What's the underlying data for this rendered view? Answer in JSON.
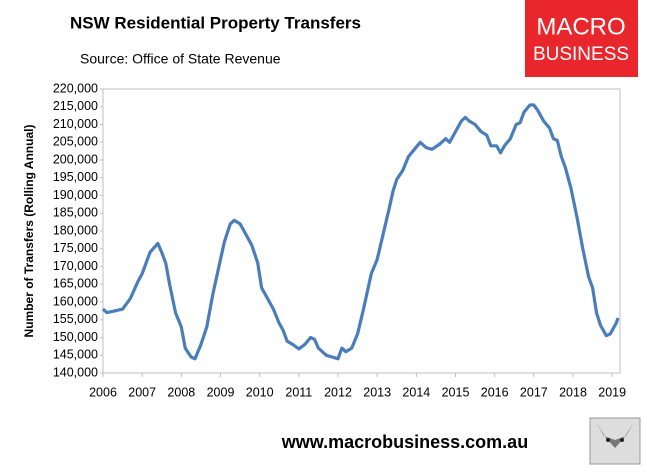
{
  "chart_data": {
    "type": "line",
    "title": "NSW Residential Property Transfers",
    "subtitle": "Source: Office of State Revenue",
    "y_label": "Number of Transfers (Rolling Annual)",
    "xlim": [
      2006,
      2019.2
    ],
    "xticks": [
      2006,
      2007,
      2008,
      2009,
      2010,
      2011,
      2012,
      2013,
      2014,
      2015,
      2016,
      2017,
      2018,
      2019
    ],
    "ylim": [
      140000,
      220000
    ],
    "yticks": [
      {
        "value": 140000,
        "label": "140,000"
      },
      {
        "value": 145000,
        "label": "145,000"
      },
      {
        "value": 150000,
        "label": "150,000"
      },
      {
        "value": 155000,
        "label": "155,000"
      },
      {
        "value": 160000,
        "label": "160,000"
      },
      {
        "value": 165000,
        "label": "165,000"
      },
      {
        "value": 170000,
        "label": "170,000"
      },
      {
        "value": 175000,
        "label": "175,000"
      },
      {
        "value": 180000,
        "label": "180,000"
      },
      {
        "value": 185000,
        "label": "185,000"
      },
      {
        "value": 190000,
        "label": "190,000"
      },
      {
        "value": 195000,
        "label": "195,000"
      },
      {
        "value": 200000,
        "label": "200,000"
      },
      {
        "value": 205000,
        "label": "205,000"
      },
      {
        "value": 210000,
        "label": "210,000"
      },
      {
        "value": 215000,
        "label": "215,000"
      },
      {
        "value": 220000,
        "label": "220,000"
      }
    ],
    "grid": false,
    "x": [
      2006.0,
      2006.1,
      2006.3,
      2006.5,
      2006.7,
      2006.9,
      2007.0,
      2007.2,
      2007.4,
      2007.5,
      2007.6,
      2007.7,
      2007.85,
      2008.0,
      2008.1,
      2008.25,
      2008.35,
      2008.5,
      2008.65,
      2008.8,
      2009.0,
      2009.1,
      2009.25,
      2009.35,
      2009.5,
      2009.65,
      2009.8,
      2009.95,
      2010.05,
      2010.2,
      2010.35,
      2010.5,
      2010.6,
      2010.7,
      2010.85,
      2011.0,
      2011.15,
      2011.3,
      2011.4,
      2011.5,
      2011.7,
      2011.85,
      2012.0,
      2012.1,
      2012.2,
      2012.35,
      2012.5,
      2012.65,
      2012.75,
      2012.85,
      2013.0,
      2013.15,
      2013.3,
      2013.4,
      2013.5,
      2013.65,
      2013.8,
      2013.95,
      2014.1,
      2014.25,
      2014.4,
      2014.6,
      2014.75,
      2014.85,
      2015.0,
      2015.15,
      2015.25,
      2015.35,
      2015.5,
      2015.65,
      2015.8,
      2015.9,
      2016.05,
      2016.15,
      2016.25,
      2016.4,
      2016.55,
      2016.65,
      2016.75,
      2016.9,
      2017.0,
      2017.1,
      2017.25,
      2017.4,
      2017.5,
      2017.6,
      2017.7,
      2017.8,
      2017.95,
      2018.1,
      2018.25,
      2018.4,
      2018.5,
      2018.6,
      2018.7,
      2018.85,
      2018.95,
      2019.1,
      2019.15
    ],
    "series": [
      {
        "name": "NSW Residential Property Transfers",
        "color": "#4a7ebb",
        "values": [
          158000,
          157000,
          157500,
          158000,
          161000,
          166000,
          168000,
          174000,
          176500,
          174000,
          171000,
          165000,
          157000,
          153000,
          147000,
          144500,
          144000,
          148000,
          153000,
          162000,
          172000,
          177000,
          182000,
          183000,
          182000,
          179000,
          176000,
          171000,
          164000,
          161000,
          158000,
          154000,
          152000,
          149000,
          148000,
          146800,
          148000,
          150000,
          149500,
          147000,
          145000,
          144500,
          144000,
          147000,
          146000,
          147000,
          151000,
          158000,
          163000,
          168000,
          172000,
          179000,
          186000,
          191000,
          194500,
          197000,
          201000,
          203000,
          205000,
          203500,
          203000,
          204500,
          206000,
          205000,
          208000,
          211000,
          212000,
          211000,
          210000,
          208000,
          207000,
          204000,
          204000,
          202000,
          204000,
          206000,
          210000,
          210500,
          213500,
          215500,
          215500,
          214000,
          211000,
          209000,
          206000,
          205500,
          201000,
          198000,
          192000,
          184000,
          175000,
          167000,
          164000,
          157000,
          153500,
          150500,
          151000,
          154000,
          155500
        ]
      }
    ]
  },
  "logo": [
    "MACRO",
    "BUSINESS"
  ],
  "footer": "www.macrobusiness.com.au"
}
